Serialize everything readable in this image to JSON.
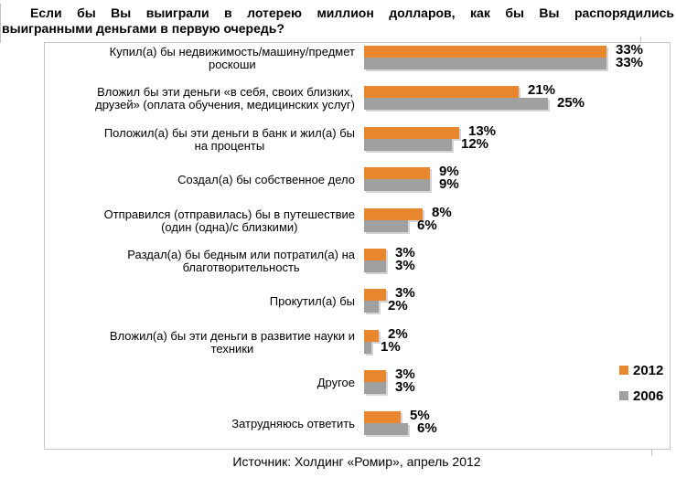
{
  "title": {
    "line1": "Если бы Вы выиграли в лотерею миллион долларов, как бы Вы распорядились",
    "line2": "выигранными деньгами в первую очередь?"
  },
  "source": "Источник: Холдинг «Ромир», апрель 2012",
  "legend": [
    {
      "label": "2012",
      "color": "#E8872D"
    },
    {
      "label": "2006",
      "color": "#A0A0A0"
    }
  ],
  "colors": {
    "bar_2012": "#E8872D",
    "bar_2006": "#A0A0A0",
    "frame_border": "#c9c9c9",
    "shadow": "#d4d4d4"
  },
  "chart_data": {
    "type": "bar",
    "orientation": "horizontal",
    "title": "Если бы Вы выиграли в лотерею миллион долларов, как бы Вы распорядились выигранными деньгами в первую очередь?",
    "categories": [
      "Купил(а) бы недвижимость/машину/предмет роскоши",
      "Вложил бы эти деньги «в себя, своих близких, друзей» (оплата обучения, медицинских услуг)",
      "Положил(а) бы эти деньги в банк и жил(а) бы на проценты",
      "Создал(а) бы собственное дело",
      "Отправился (отправилась) бы в путешествие (один (одна)/с близкими)",
      "Раздал(а) бы бедным или потратил(а) на благотворительность",
      "Прокутил(а) бы",
      "Вложил(а) бы эти деньги в развитие науки и техники",
      "Другое",
      "Затрудняюсь ответить"
    ],
    "category_label_lines": [
      "Купил(а) бы недвижимость/машину/предмет\nроскоши",
      "Вложил бы эти деньги «в себя, своих близких,\nдрузей» (оплата обучения, медицинских услуг)",
      "Положил(а) бы эти деньги в банк и жил(а) бы\nна проценты",
      "Создал(а) бы собственное дело",
      "Отправился (отправилась) бы в путешествие\n(один (одна)/с близкими)",
      "Раздал(а) бы бедным или потратил(а) на\nблаготворительность",
      "Прокутил(а) бы",
      "Вложил(а) бы эти деньги в развитие науки и\nтехники",
      "Другое",
      "Затрудняюсь ответить"
    ],
    "series": [
      {
        "name": "2012",
        "color": "#E8872D",
        "values": [
          33,
          21,
          13,
          9,
          8,
          3,
          3,
          2,
          3,
          5
        ]
      },
      {
        "name": "2006",
        "color": "#A0A0A0",
        "values": [
          33,
          25,
          12,
          9,
          6,
          3,
          2,
          1,
          3,
          6
        ]
      }
    ],
    "value_suffix": "%",
    "xlim": [
      0,
      40
    ],
    "value_axis_visible": false,
    "grid": false,
    "legend_position": "right-bottom"
  }
}
